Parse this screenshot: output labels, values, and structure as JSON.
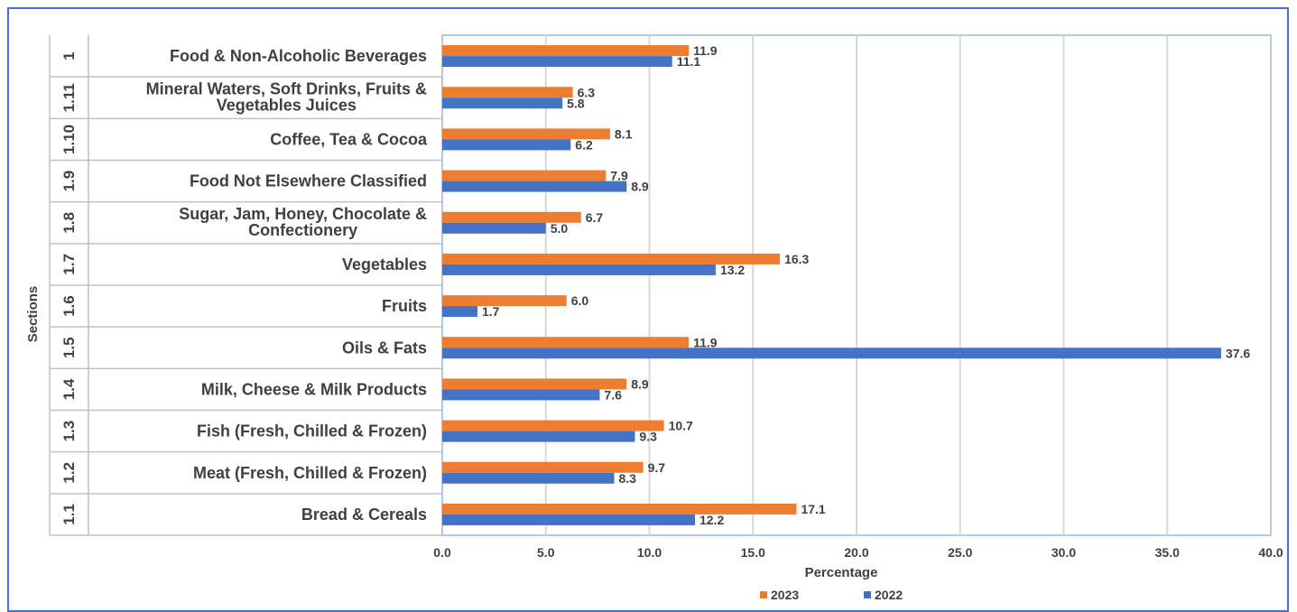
{
  "chart_data": {
    "type": "bar",
    "orientation": "horizontal",
    "title": "",
    "xlabel": "Percentage",
    "ylabel": "Sections",
    "xlim": [
      0,
      40
    ],
    "x_ticks": [
      "0.0",
      "5.0",
      "10.0",
      "15.0",
      "20.0",
      "25.0",
      "30.0",
      "35.0",
      "40.0"
    ],
    "grid": true,
    "legend_position": "bottom",
    "codes": [
      "1",
      "1.11",
      "1.10",
      "1.9",
      "1.8",
      "1.7",
      "1.6",
      "1.5",
      "1.4",
      "1.3",
      "1.2",
      "1.1"
    ],
    "categories": [
      [
        "Food & Non-Alcoholic Beverages"
      ],
      [
        "Mineral Waters, Soft Drinks, Fruits &",
        "Vegetables  Juices"
      ],
      [
        "Coffee, Tea & Cocoa"
      ],
      [
        "Food Not Elsewhere Classified"
      ],
      [
        "Sugar, Jam, Honey, Chocolate &",
        "Confectionery"
      ],
      [
        "Vegetables"
      ],
      [
        "Fruits"
      ],
      [
        "Oils & Fats"
      ],
      [
        "Milk, Cheese & Milk Products"
      ],
      [
        "Fish (Fresh, Chilled & Frozen)"
      ],
      [
        "Meat (Fresh, Chilled & Frozen)"
      ],
      [
        "Bread & Cereals"
      ]
    ],
    "series": [
      {
        "name": "2023",
        "color": "#ed7d31",
        "values": [
          11.9,
          6.3,
          8.1,
          7.9,
          6.7,
          16.3,
          6.0,
          11.9,
          8.9,
          10.7,
          9.7,
          17.1
        ]
      },
      {
        "name": "2022",
        "color": "#4472c4",
        "values": [
          11.1,
          5.8,
          6.2,
          8.9,
          5.0,
          13.2,
          1.7,
          37.6,
          7.6,
          9.3,
          8.3,
          12.2
        ]
      }
    ],
    "value_format_decimals": 1
  }
}
